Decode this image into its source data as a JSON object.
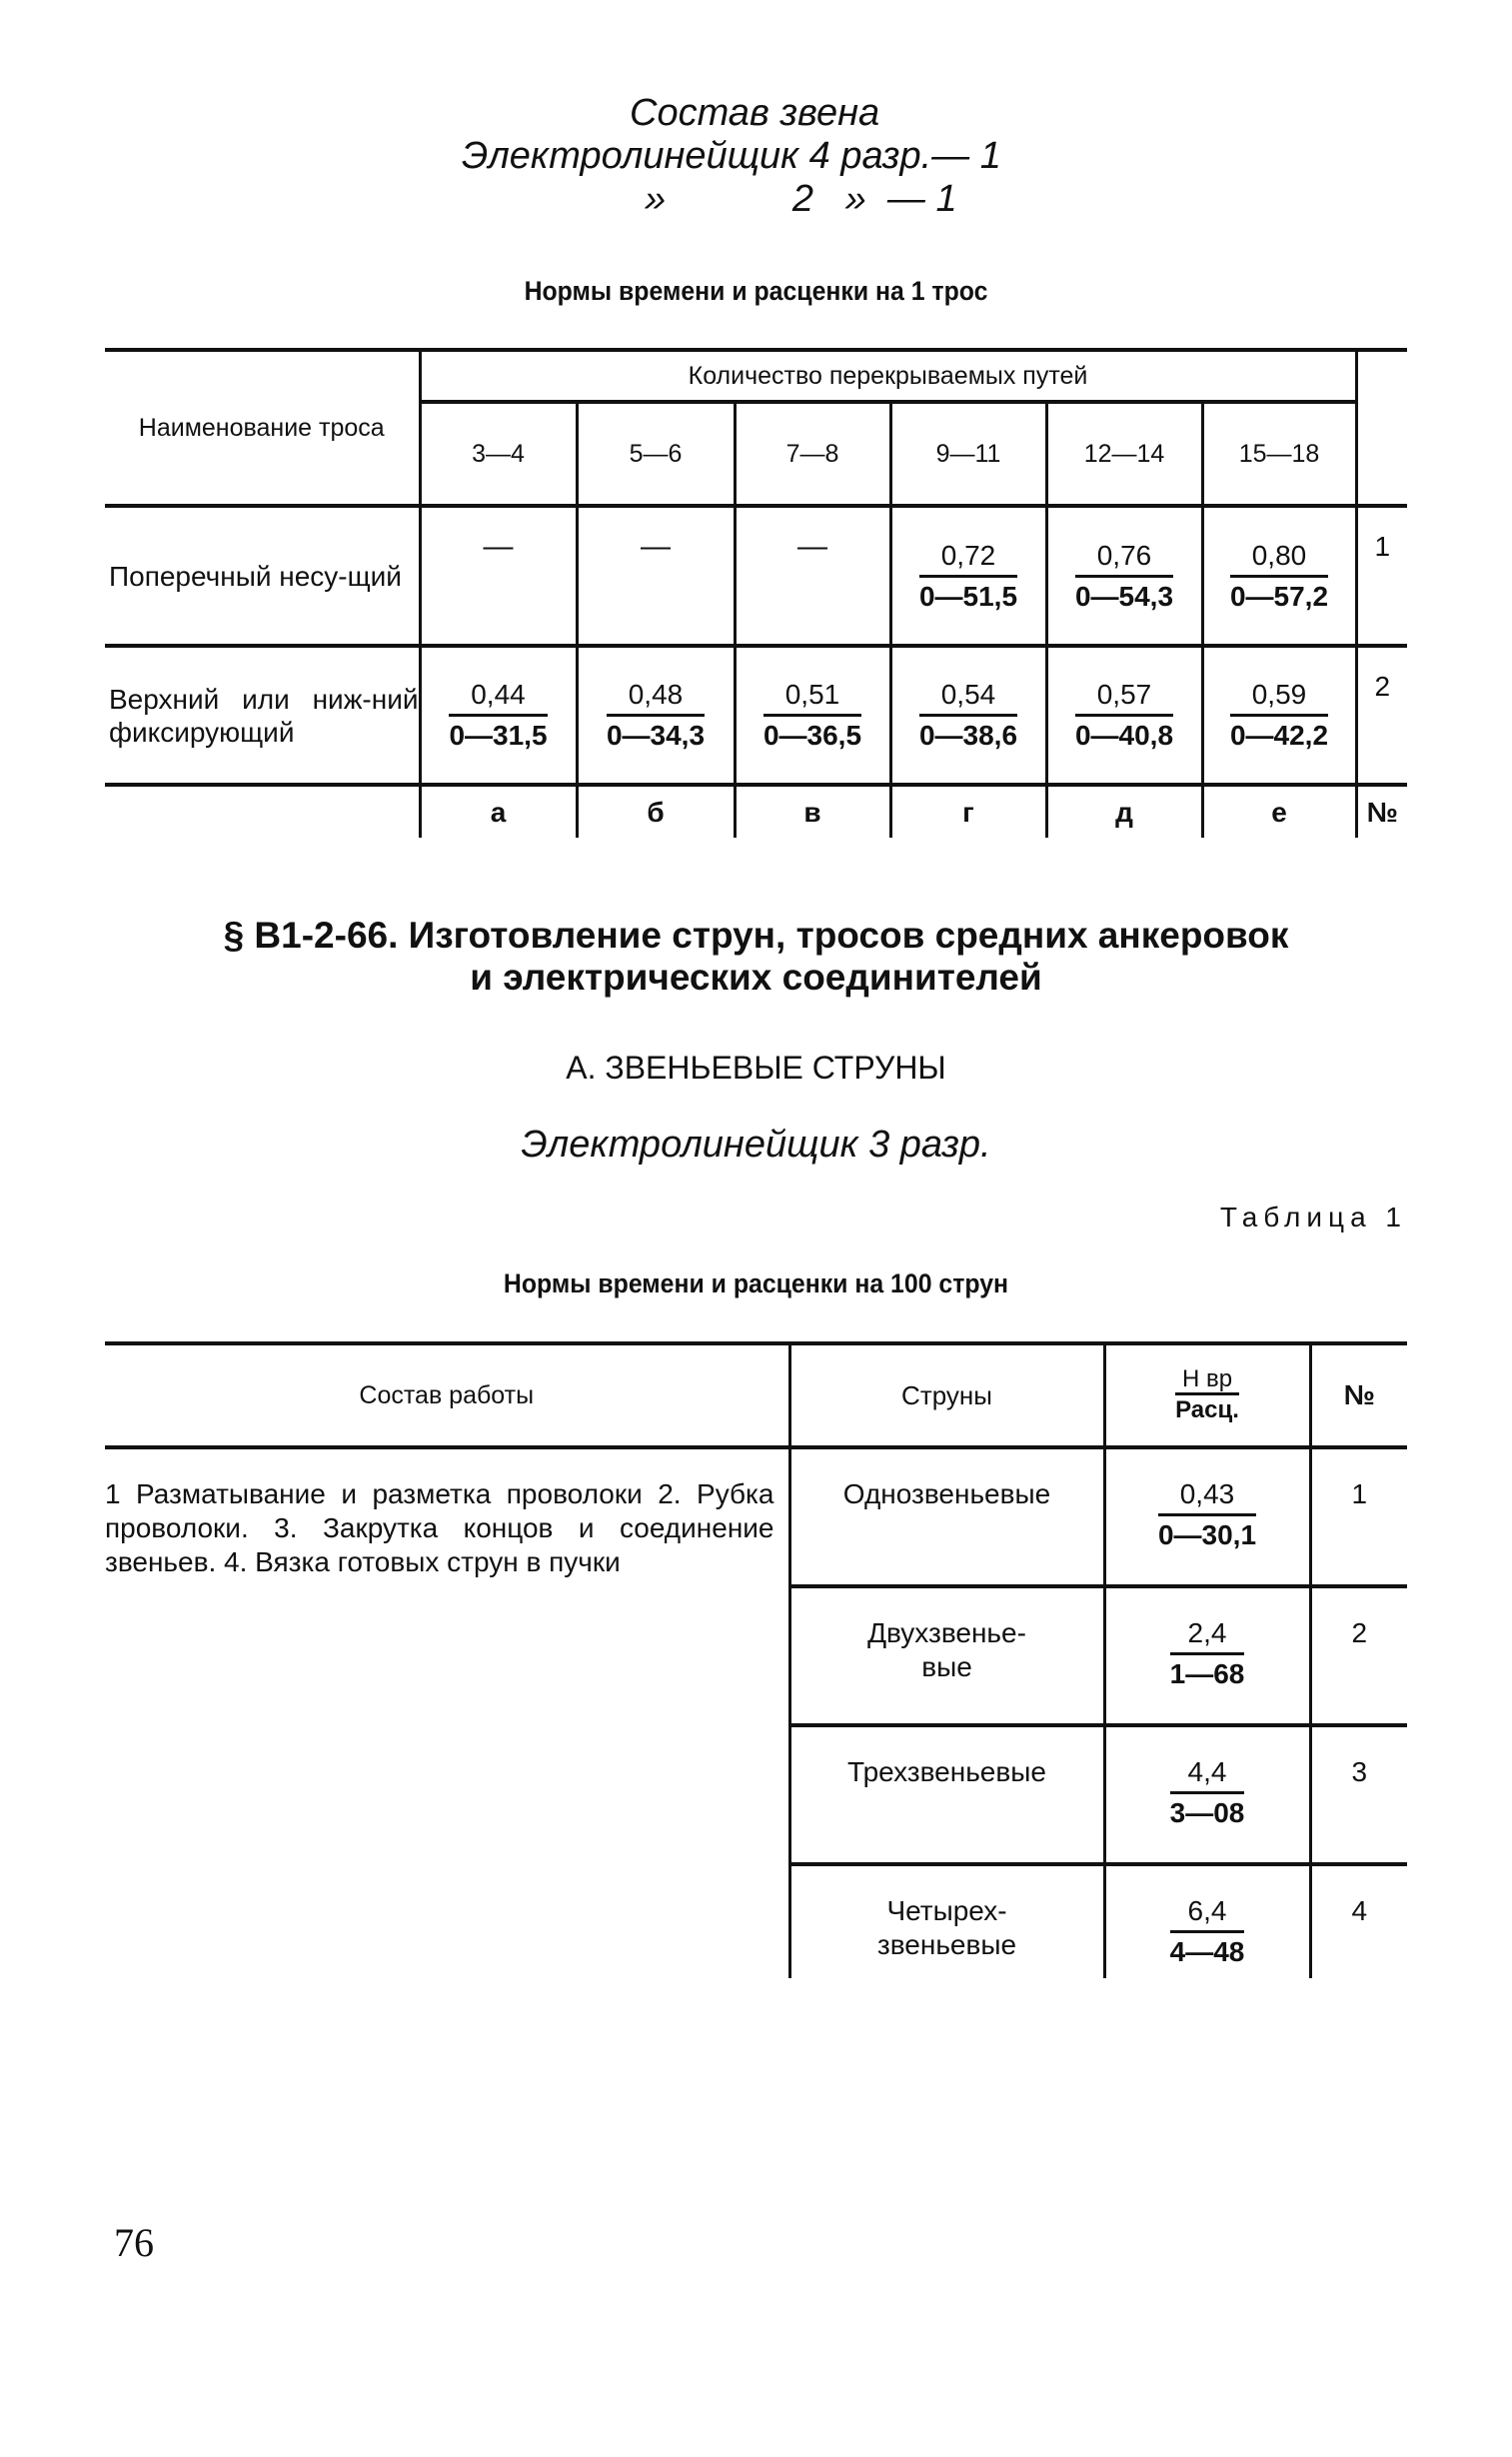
{
  "crew": {
    "title": "Состав звена",
    "line1": "Электролинейщик 4 разр.— 1",
    "line2": "»            2   »  — 1"
  },
  "table1": {
    "caption": "Нормы времени и расценки на 1 трос",
    "name_header": "Наименование троса",
    "group_header": "Количество перекрываемых путей",
    "columns": [
      "3—4",
      "5—6",
      "7—8",
      "9—11",
      "12—14",
      "15—18"
    ],
    "rows": [
      {
        "name": "Поперечный несу-щий",
        "cells": [
          {
            "dash": "—"
          },
          {
            "dash": "—"
          },
          {
            "dash": "—"
          },
          {
            "top": "0,72",
            "bottom": "0—51,5"
          },
          {
            "top": "0,76",
            "bottom": "0—54,3"
          },
          {
            "top": "0,80",
            "bottom": "0—57,2"
          }
        ],
        "no": "1"
      },
      {
        "name": "Верхний или ниж-ний фиксирующий",
        "cells": [
          {
            "top": "0,44",
            "bottom": "0—31,5"
          },
          {
            "top": "0,48",
            "bottom": "0—34,3"
          },
          {
            "top": "0,51",
            "bottom": "0—36,5"
          },
          {
            "top": "0,54",
            "bottom": "0—38,6"
          },
          {
            "top": "0,57",
            "bottom": "0—40,8"
          },
          {
            "top": "0,59",
            "bottom": "0—42,2"
          }
        ],
        "no": "2"
      }
    ],
    "letters": [
      "а",
      "б",
      "в",
      "г",
      "д",
      "е"
    ],
    "no_label": "№"
  },
  "section": {
    "heading_line1": "§ В1-2-66. Изготовление струн, тросов средних анкеровок",
    "heading_line2": "и электрических соединителей",
    "subheading": "А. ЗВЕНЬЕВЫЕ СТРУНЫ",
    "worker": "Электролинейщик 3 разр.",
    "table_label": "Таблица 1"
  },
  "table2": {
    "caption": "Нормы времени и расценки на 100 струн",
    "headers": {
      "work": "Состав работы",
      "strings": "Струны",
      "norm_top": "Н вр",
      "norm_bottom": "Расц.",
      "no": "№"
    },
    "work_text": "1 Разматывание и разметка проволоки 2. Рубка проволоки. 3. Закрутка концов и соединение звеньев. 4. Вязка готовых струн в пучки",
    "rows": [
      {
        "name": "Однозвеньевые",
        "top": "0,43",
        "bottom": "0—30,1",
        "no": "1"
      },
      {
        "name": "Двухзвенье-вые",
        "top": "2,4",
        "bottom": "1—68",
        "no": "2"
      },
      {
        "name": "Трехзвеньевые",
        "top": "4,4",
        "bottom": "3—08",
        "no": "3"
      },
      {
        "name": "Четырех-звеньевые",
        "top": "6,4",
        "bottom": "4—48",
        "no": "4"
      }
    ]
  },
  "page_number": "76"
}
